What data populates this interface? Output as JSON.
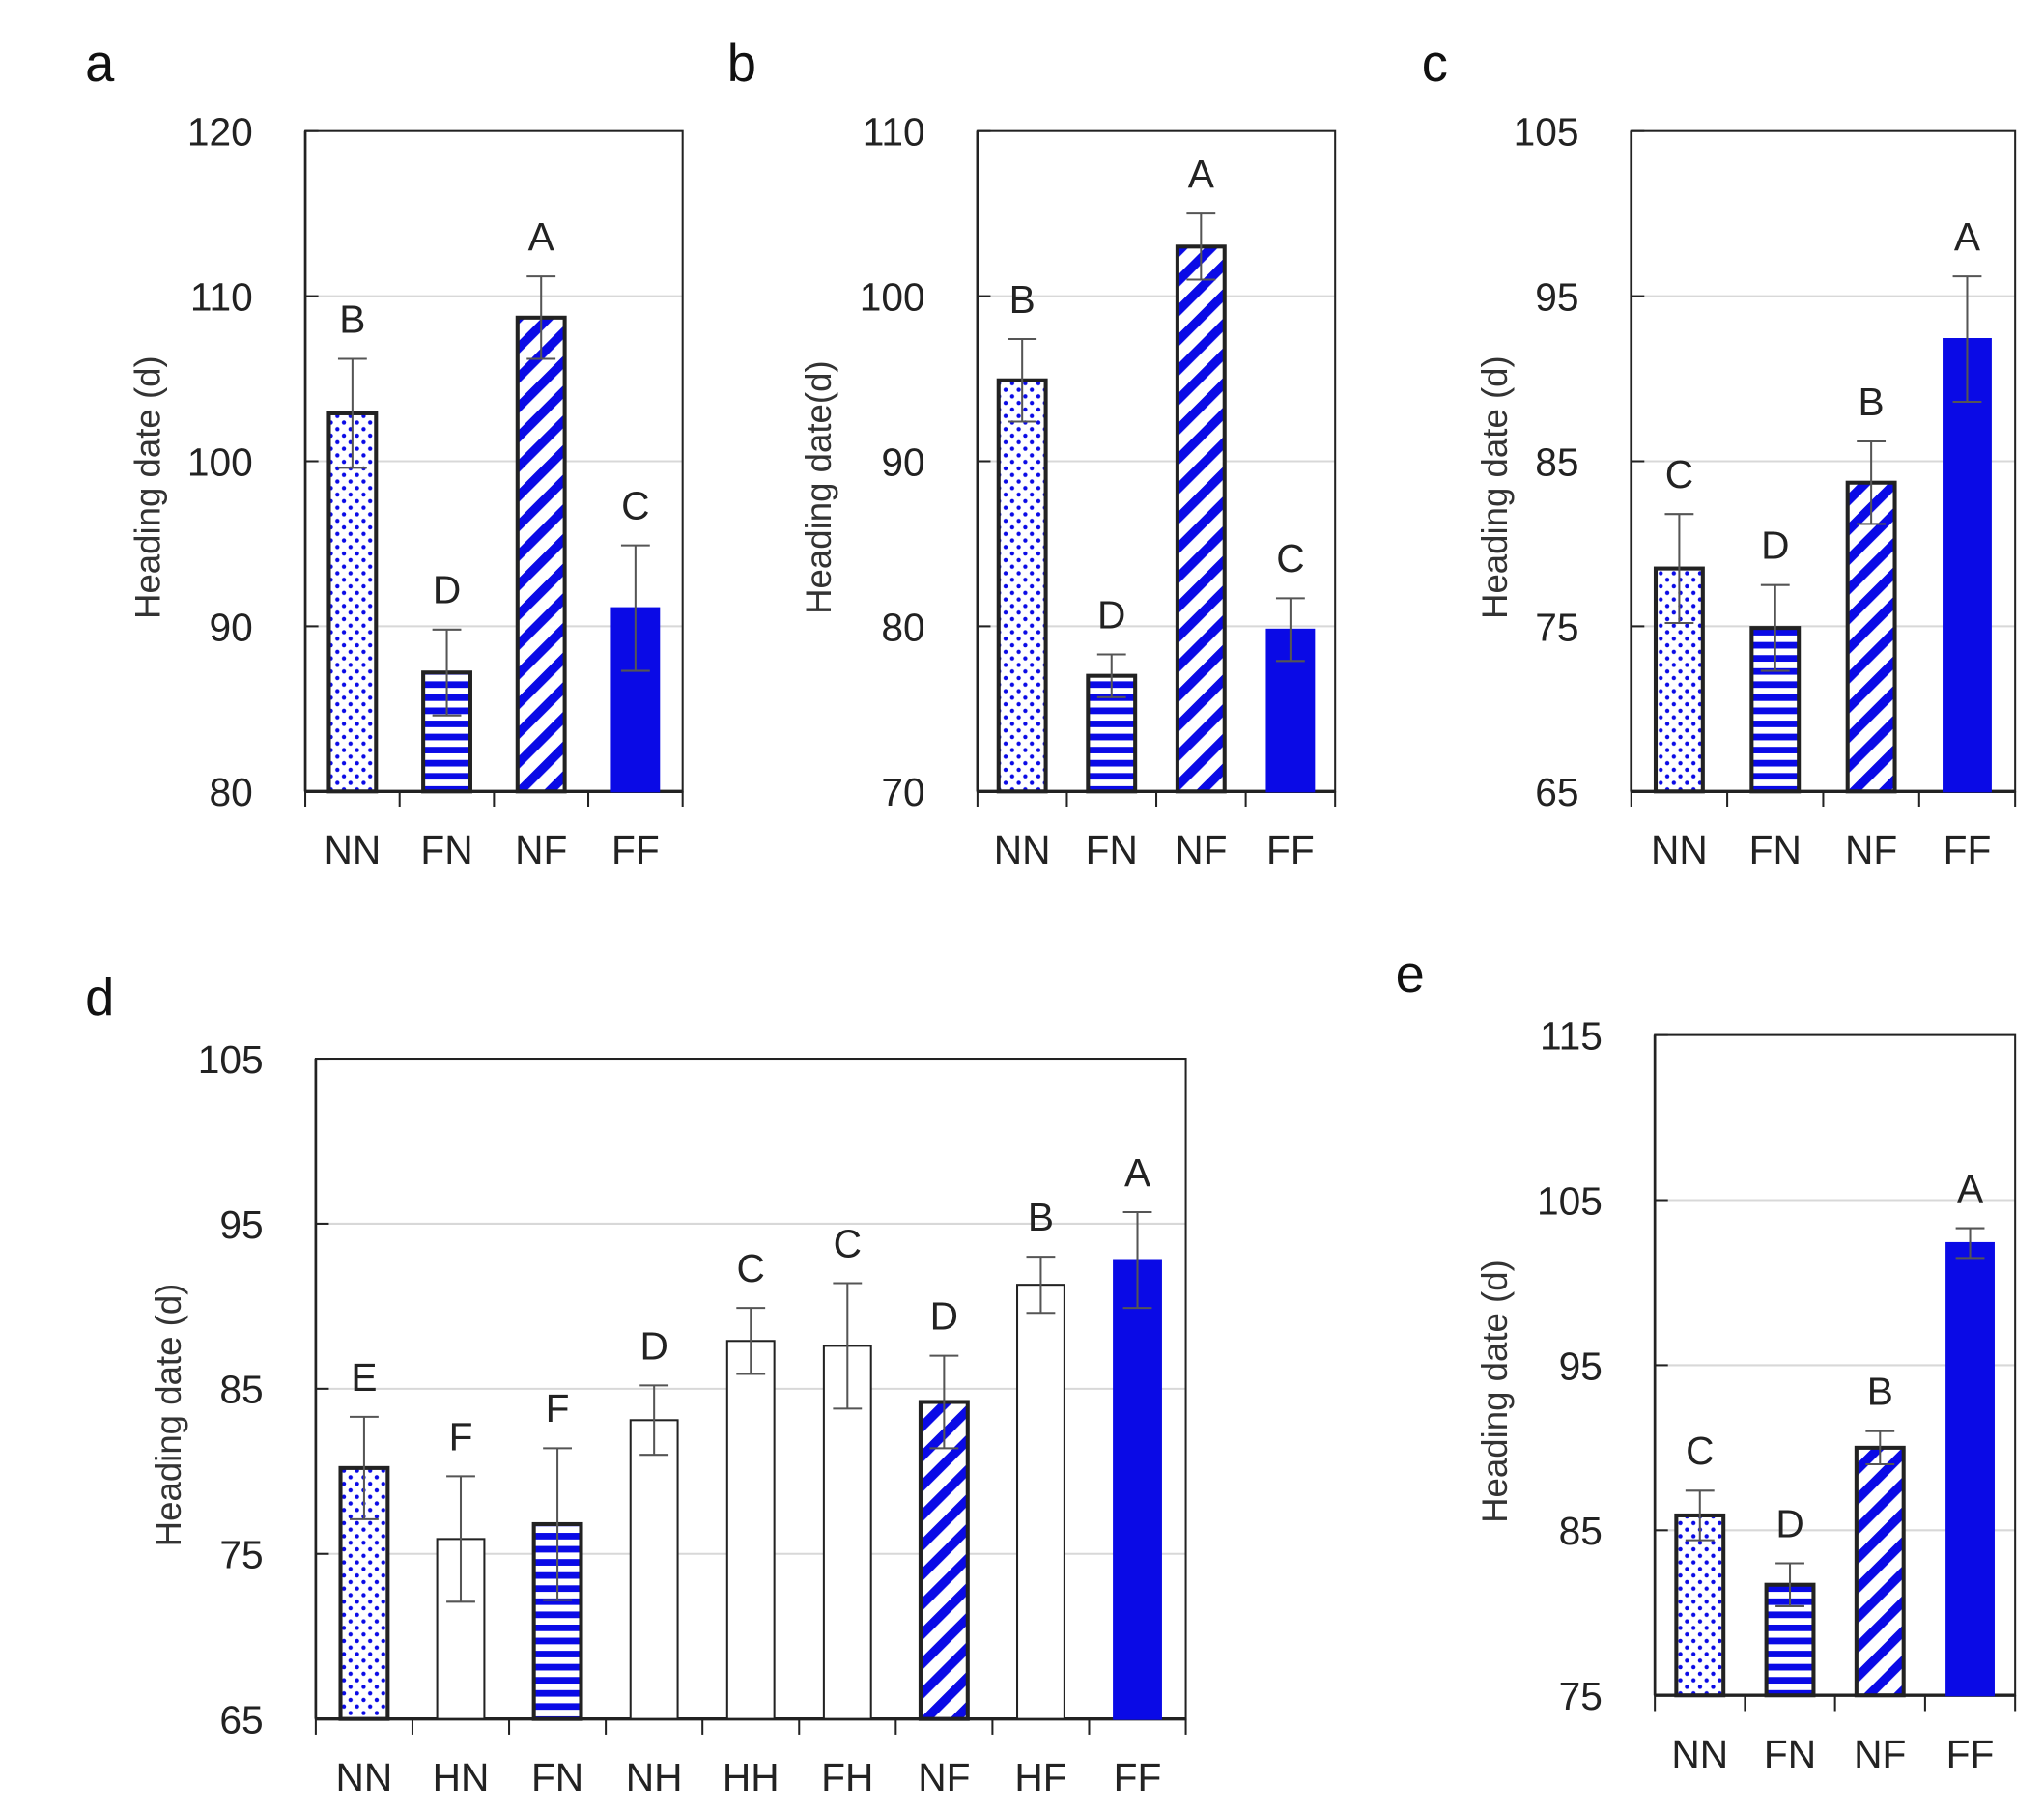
{
  "colors": {
    "bar_blue": "#0a0ae6",
    "grid": "#d8d8d8",
    "axis": "#222222",
    "error": "#555555"
  },
  "chart_data": [
    {
      "panel": "a",
      "type": "bar",
      "ylabel": "Heading date (d)",
      "ylim": [
        80,
        120
      ],
      "yticks": [
        80,
        90,
        100,
        110,
        120
      ],
      "categories": [
        "NN",
        "FN",
        "NF",
        "FF"
      ],
      "values": [
        102.9,
        87.2,
        108.7,
        91.1
      ],
      "errors": [
        3.3,
        2.6,
        2.5,
        3.8
      ],
      "letters": [
        "B",
        "D",
        "A",
        "C"
      ],
      "grid": true
    },
    {
      "panel": "b",
      "type": "bar",
      "ylabel": "Heading date(d)",
      "ylim": [
        70,
        110
      ],
      "yticks": [
        70,
        80,
        90,
        100,
        110
      ],
      "categories": [
        "NN",
        "FN",
        "NF",
        "FF"
      ],
      "values": [
        94.9,
        77.0,
        103.0,
        79.8
      ],
      "errors": [
        2.5,
        1.3,
        2.0,
        1.9
      ],
      "letters": [
        "B",
        "D",
        "A",
        "C"
      ],
      "grid": true
    },
    {
      "panel": "c",
      "type": "bar",
      "ylabel": "Heading date (d)",
      "ylim": [
        65,
        105
      ],
      "yticks": [
        65,
        75,
        85,
        95,
        105
      ],
      "categories": [
        "NN",
        "FN",
        "NF",
        "FF"
      ],
      "values": [
        78.5,
        74.9,
        83.7,
        92.4
      ],
      "errors": [
        3.3,
        2.6,
        2.5,
        3.8
      ],
      "letters": [
        "C",
        "D",
        "B",
        "A"
      ],
      "grid": true
    },
    {
      "panel": "d",
      "type": "bar",
      "ylabel": "Heading date (d)",
      "ylim": [
        65,
        105
      ],
      "yticks": [
        65,
        75,
        85,
        95,
        105
      ],
      "categories": [
        "NN",
        "HN",
        "FN",
        "NH",
        "HH",
        "FH",
        "NF",
        "HF",
        "FF"
      ],
      "values": [
        80.2,
        75.9,
        76.8,
        83.1,
        87.9,
        87.6,
        84.2,
        91.3,
        92.8
      ],
      "errors": [
        3.1,
        3.8,
        4.6,
        2.1,
        2.0,
        3.8,
        2.8,
        1.7,
        2.9
      ],
      "letters": [
        "E",
        "F",
        "F",
        "D",
        "C",
        "C",
        "D",
        "B",
        "A"
      ],
      "grid": true
    },
    {
      "panel": "e",
      "type": "bar",
      "ylabel": "Heading date (d)",
      "ylim": [
        75,
        115
      ],
      "yticks": [
        75,
        85,
        95,
        105,
        115
      ],
      "categories": [
        "NN",
        "FN",
        "NF",
        "FF"
      ],
      "values": [
        85.9,
        81.7,
        90.0,
        102.4
      ],
      "errors": [
        1.5,
        1.3,
        1.0,
        0.9
      ],
      "letters": [
        "C",
        "D",
        "B",
        "A"
      ],
      "grid": true
    }
  ]
}
